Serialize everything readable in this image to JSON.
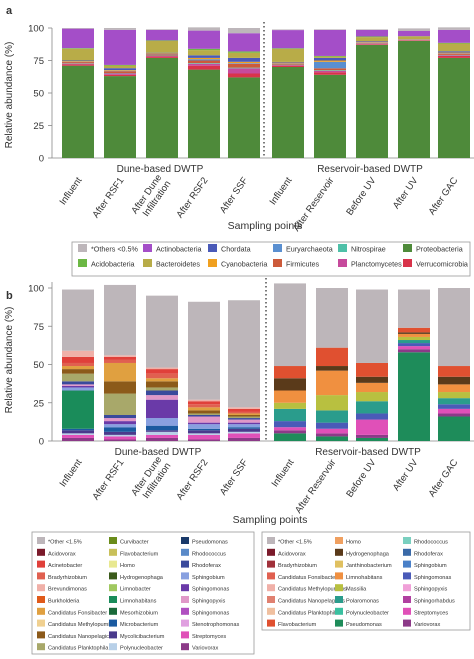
{
  "chart_data": [
    {
      "panel": "a",
      "type": "bar",
      "stacked": true,
      "ylabel": "Relative abundance (%)",
      "xlabel": "Sampling points",
      "ylim": [
        0,
        100
      ],
      "yticks": [
        "0",
        "25",
        "50",
        "75",
        "100"
      ],
      "groups": [
        "Dune-based DWTP",
        "Reservoir-based DWTP"
      ],
      "categories": [
        "Influent",
        "After RSF1",
        "After Dune Infiltration",
        "After RSF2",
        "After SSF",
        "Influent",
        "After Reservoir",
        "Before UV",
        "After UV",
        "After GAC"
      ],
      "series": [
        {
          "name": "Proteobacteria",
          "color": "#4e8a3a",
          "values": [
            71,
            63,
            77,
            68,
            62,
            70,
            64,
            87,
            90,
            77
          ]
        },
        {
          "name": "Verrucomicrobia",
          "color": "#d8334a",
          "values": [
            1,
            1,
            1,
            3,
            3,
            1,
            2,
            0.5,
            0.3,
            1.5
          ]
        },
        {
          "name": "Planctomycetes",
          "color": "#c64a9c",
          "values": [
            0.5,
            1,
            0.5,
            1.5,
            4,
            0.5,
            1,
            0.5,
            0.2,
            0.5
          ]
        },
        {
          "name": "Nitrospirae",
          "color": "#4ec0a8",
          "values": [
            0.3,
            0.3,
            0.3,
            0.5,
            0.5,
            0.3,
            0.5,
            0.2,
            0.1,
            0.3
          ]
        },
        {
          "name": "Firmicutes",
          "color": "#cc5a3a",
          "values": [
            1,
            1.5,
            1,
            2,
            3,
            0.8,
            1.5,
            0.5,
            0.3,
            1
          ]
        },
        {
          "name": "Euryarchaeota",
          "color": "#5a8fd0",
          "values": [
            0.2,
            0.3,
            0.2,
            1,
            0.5,
            0.3,
            5,
            0.3,
            0.1,
            0.3
          ]
        },
        {
          "name": "Cyanobacteria",
          "color": "#f0a020",
          "values": [
            0.5,
            0.5,
            0.5,
            1,
            1,
            0.5,
            1,
            0.5,
            0.3,
            0.5
          ]
        },
        {
          "name": "Chordata",
          "color": "#4a5ab8",
          "values": [
            0.5,
            1.5,
            0.5,
            2,
            3,
            0.5,
            2,
            0.5,
            0.2,
            1
          ]
        },
        {
          "name": "Bacteroidetes",
          "color": "#b8ac48",
          "values": [
            9,
            2,
            9,
            4,
            4,
            10,
            1,
            3,
            2,
            6
          ]
        },
        {
          "name": "Acidobacteria",
          "color": "#6cb844",
          "values": [
            0.5,
            0.5,
            0.5,
            1,
            1,
            0.5,
            0.5,
            0.5,
            0.2,
            0.5
          ]
        },
        {
          "name": "Actinobacteria",
          "color": "#a44ec8",
          "values": [
            15,
            27,
            8,
            14,
            14,
            14,
            20,
            5,
            4,
            10
          ]
        },
        {
          "name": "*Others <0.5%",
          "color": "#bdb6ba",
          "values": [
            0.5,
            1.4,
            0.5,
            2.5,
            4,
            0.5,
            0.5,
            0.5,
            2,
            1.9
          ]
        }
      ],
      "legend": [
        "*Others <0.5%",
        "Actinobacteria",
        "Chordata",
        "Euryarchaeota",
        "Nitrospirae",
        "Proteobacteria",
        "Acidobacteria",
        "Bacteroidetes",
        "Cyanobacteria",
        "Firmicutes",
        "Planctomycetes",
        "Verrucomicrobia"
      ],
      "colors": {
        "*Others <0.5%": "#bdb6ba",
        "Actinobacteria": "#a44ec8",
        "Chordata": "#4a5ab8",
        "Euryarchaeota": "#5a8fd0",
        "Nitrospirae": "#4ec0a8",
        "Proteobacteria": "#4e8a3a",
        "Acidobacteria": "#6cb844",
        "Bacteroidetes": "#b8ac48",
        "Cyanobacteria": "#f0a020",
        "Firmicutes": "#cc5a3a",
        "Planctomycetes": "#c64a9c",
        "Verrucomicrobia": "#d8334a"
      }
    },
    {
      "panel": "b",
      "type": "bar",
      "stacked": true,
      "ylabel": "Relative abundance (%)",
      "xlabel": "Sampling points",
      "ylim": [
        0,
        100
      ],
      "yticks": [
        "0",
        "25",
        "50",
        "75",
        "100"
      ],
      "groups": [
        "Dune-based DWTP",
        "Reservoir-based DWTP"
      ],
      "categories": [
        "Influent",
        "After RSF1",
        "After Dune Infiltration",
        "After RSF2",
        "After SSF",
        "Influent",
        "After Reservoir",
        "Before UV",
        "After UV",
        "After GAC"
      ],
      "series": [
        {
          "name": "Variovorax",
          "color": "#8c3a88",
          "values": [
            2,
            1,
            2,
            1,
            2,
            0,
            0,
            0,
            0,
            0
          ]
        },
        {
          "name": "Streptomyces",
          "color": "#e050b8",
          "values": [
            2,
            2,
            2,
            3,
            3,
            0,
            0,
            0,
            0,
            0
          ]
        },
        {
          "name": "Polynucleobacter",
          "color": "#b8d0e8",
          "values": [
            1,
            1,
            2,
            1,
            1,
            0,
            0,
            0,
            0,
            0
          ]
        },
        {
          "name": "Mycolicibacterium",
          "color": "#4a3a8c",
          "values": [
            2,
            2,
            1,
            2,
            2,
            0,
            0,
            0,
            0,
            0
          ]
        },
        {
          "name": "Microbacterium",
          "color": "#1a5aa0",
          "values": [
            1,
            3,
            3,
            1,
            1,
            0,
            0,
            0,
            0,
            0
          ]
        },
        {
          "name": "Limnohabitans",
          "color": "#1a8c5a",
          "values": [
            25,
            0,
            0,
            0,
            0,
            0,
            0,
            0,
            0,
            0
          ]
        },
        {
          "name": "Sphingobium",
          "color": "#88a0e0",
          "values": [
            2,
            2,
            5,
            3,
            2,
            0,
            0,
            0,
            0,
            0
          ]
        },
        {
          "name": "Sphingomonas",
          "color": "#6a3aa8",
          "values": [
            1,
            2,
            12,
            1,
            1,
            0,
            0,
            0,
            0,
            0
          ]
        },
        {
          "name": "Sphingopyxis",
          "color": "#e098c8",
          "values": [
            1,
            2,
            3,
            4,
            2,
            0,
            0,
            0,
            0,
            0
          ]
        },
        {
          "name": "Rhodoferax",
          "color": "#3a4a9c",
          "values": [
            2,
            2,
            3,
            1,
            1,
            0,
            0,
            0,
            0,
            0
          ]
        },
        {
          "name": "Candidatus Planktophila",
          "color": "#a8a86a",
          "values": [
            5,
            14,
            2,
            1,
            1,
            0,
            0,
            0,
            0,
            0
          ]
        },
        {
          "name": "Candidatus Nanopelagicus",
          "color": "#8c5a1a",
          "values": [
            3,
            8,
            4,
            2,
            1,
            0,
            0,
            0,
            0,
            0
          ]
        },
        {
          "name": "Candidatus Fonsibacter",
          "color": "#e0a040",
          "values": [
            2,
            12,
            2,
            2,
            1,
            0,
            0,
            0,
            0,
            0
          ]
        },
        {
          "name": "Bradyrhizobium",
          "color": "#e06050",
          "values": [
            2,
            2,
            3,
            2,
            1,
            0,
            0,
            0,
            0,
            0
          ]
        },
        {
          "name": "Acinetobacter",
          "color": "#e0403a",
          "values": [
            4,
            2,
            3,
            2,
            2,
            0,
            0,
            0,
            0,
            0
          ]
        },
        {
          "name": "Brevundimonas",
          "color": "#f0b0a8",
          "values": [
            4,
            1,
            1,
            1,
            1,
            0,
            0,
            0,
            0,
            0
          ]
        },
        {
          "name": "Pseudomonas R",
          "color": "#1e8c5a",
          "values": [
            0,
            0,
            0,
            0,
            0,
            5,
            3,
            2,
            58,
            16
          ]
        },
        {
          "name": "Variovorax R",
          "color": "#8c3a88",
          "values": [
            0,
            0,
            0,
            0,
            0,
            2,
            2,
            2,
            2,
            2
          ]
        },
        {
          "name": "Streptomyces R",
          "color": "#e050b8",
          "values": [
            0,
            0,
            0,
            0,
            0,
            2,
            3,
            10,
            2,
            3
          ]
        },
        {
          "name": "Sphingomonas R",
          "color": "#4a5ab8",
          "values": [
            0,
            0,
            0,
            0,
            0,
            4,
            4,
            4,
            2,
            3
          ]
        },
        {
          "name": "Polaromonas R",
          "color": "#2a9c8c",
          "values": [
            0,
            0,
            0,
            0,
            0,
            8,
            8,
            8,
            2,
            4
          ]
        },
        {
          "name": "Massilia R",
          "color": "#b8c040",
          "values": [
            0,
            0,
            0,
            0,
            0,
            4,
            10,
            6,
            2,
            4
          ]
        },
        {
          "name": "Limnohabitans R",
          "color": "#f09040",
          "values": [
            0,
            0,
            0,
            0,
            0,
            8,
            16,
            6,
            2,
            5
          ]
        },
        {
          "name": "Hydrogenophaga R",
          "color": "#5a3a1a",
          "values": [
            0,
            0,
            0,
            0,
            0,
            8,
            3,
            4,
            1,
            5
          ]
        },
        {
          "name": "Flavobacterium R",
          "color": "#e05030",
          "values": [
            0,
            0,
            0,
            0,
            0,
            8,
            12,
            9,
            3,
            7
          ]
        },
        {
          "name": "*Other <1.5%",
          "color": "#bdb6ba",
          "values": [
            40,
            46,
            47,
            64,
            70,
            54,
            39,
            48,
            25,
            51
          ]
        }
      ],
      "legend_left": [
        "*Other <1.5%",
        "Acidovorax",
        "Acinetobacter",
        "Bradyrhizobium",
        "Brevundimonas",
        "Burkholderia",
        "Candidatus Fonsibacter",
        "Candidatus Methylopumilus",
        "Candidatus Nanopelagicus",
        "Candidatus Planktophila",
        "Curvibacter",
        "Flavobacterium",
        "Homo",
        "Hydrogenophaga",
        "Limnobacter",
        "Limnohabitans",
        "Mesorhizobium",
        "Microbacterium",
        "Mycolicibacterium",
        "Polynucleobacter",
        "Pseudomonas",
        "Rhodococcus",
        "Rhodoferax",
        "Sphingobium",
        "Sphingomonas",
        "Sphingopyxis",
        "Sphingomonas",
        "Stenotrophomonas",
        "Streptomyces",
        "Variovorax"
      ],
      "legend_left_colors": [
        "#bdb6ba",
        "#7a1a2a",
        "#e0403a",
        "#e06050",
        "#f0b0a8",
        "#e05a1a",
        "#e0a040",
        "#f0d090",
        "#8c5a1a",
        "#a8a86a",
        "#6a8c1a",
        "#c8c05a",
        "#e8e890",
        "#3a5a1a",
        "#a0c860",
        "#1a8c5a",
        "#1a6a3a",
        "#1a5aa0",
        "#4a3a8c",
        "#b8d0e8",
        "#1a3a6a",
        "#5a8ac8",
        "#3a4a9c",
        "#88a0e0",
        "#6a3aa8",
        "#e098c8",
        "#b050c0",
        "#e0a0e0",
        "#e050b8",
        "#8c3a88"
      ],
      "legend_right": [
        "*Other <1.5%",
        "Acidovorax",
        "Bradyrhizobium",
        "Candidatus Fonsibacter",
        "Candidatus Methylopumilus",
        "Candidatus Nanopelagicus",
        "Candidatus Planktophila",
        "Flavobacterium",
        "Homo",
        "Hydrogenophaga",
        "Janthinobacterium",
        "Limnohabitans",
        "Massilia",
        "Polaromonas",
        "Polynucleobacter",
        "Pseudomonas",
        "Rhodococcus",
        "Rhodoferax",
        "Sphingobium",
        "Sphingomonas",
        "Sphingopyxis",
        "Sphingorhabdus",
        "Streptomyces",
        "Variovorax"
      ],
      "legend_right_colors": [
        "#bdb6ba",
        "#7a1a2a",
        "#a0303a",
        "#e06050",
        "#f0b0a8",
        "#e08070",
        "#f0c0a0",
        "#e05030",
        "#f0a060",
        "#5a3a1a",
        "#e0c060",
        "#f09040",
        "#b8c040",
        "#2a9c8c",
        "#3ac0a0",
        "#1e8c5a",
        "#7ad0c0",
        "#3a6aa8",
        "#4a80c8",
        "#4a5ab8",
        "#f0a0d8",
        "#b040a0",
        "#e050b8",
        "#8c3a88"
      ]
    }
  ]
}
